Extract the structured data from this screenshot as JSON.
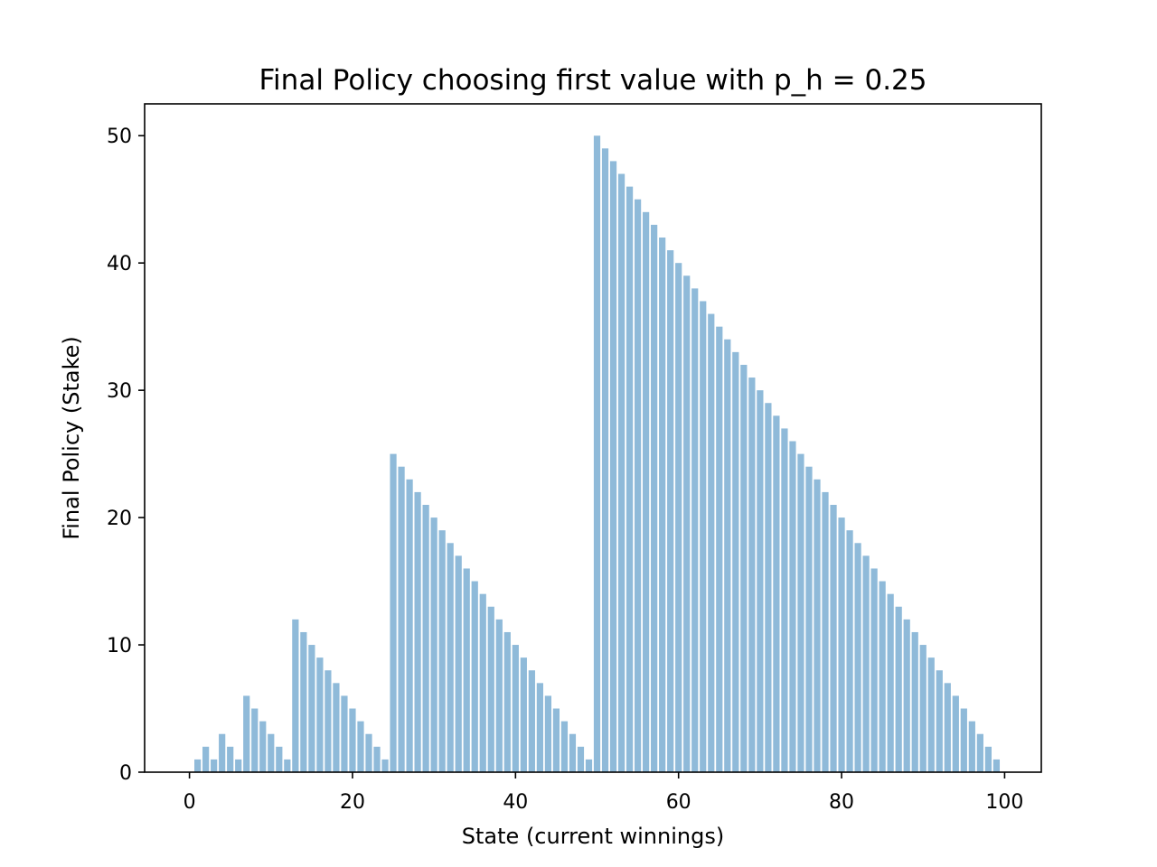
{
  "chart_data": {
    "type": "bar",
    "title": "Final Policy choosing first value with p_h = 0.25",
    "xlabel": "State (current winnings)",
    "ylabel": "Final Policy (Stake)",
    "xlim": [
      -5.5,
      104.5
    ],
    "ylim": [
      0,
      52.5
    ],
    "xticks": [
      0,
      20,
      40,
      60,
      80,
      100
    ],
    "yticks": [
      0,
      10,
      20,
      30,
      40,
      50
    ],
    "grid": false,
    "bar_color": "#8fbad9",
    "x": [
      0,
      1,
      2,
      3,
      4,
      5,
      6,
      7,
      8,
      9,
      10,
      11,
      12,
      13,
      14,
      15,
      16,
      17,
      18,
      19,
      20,
      21,
      22,
      23,
      24,
      25,
      26,
      27,
      28,
      29,
      30,
      31,
      32,
      33,
      34,
      35,
      36,
      37,
      38,
      39,
      40,
      41,
      42,
      43,
      44,
      45,
      46,
      47,
      48,
      49,
      50,
      51,
      52,
      53,
      54,
      55,
      56,
      57,
      58,
      59,
      60,
      61,
      62,
      63,
      64,
      65,
      66,
      67,
      68,
      69,
      70,
      71,
      72,
      73,
      74,
      75,
      76,
      77,
      78,
      79,
      80,
      81,
      82,
      83,
      84,
      85,
      86,
      87,
      88,
      89,
      90,
      91,
      92,
      93,
      94,
      95,
      96,
      97,
      98,
      99
    ],
    "values": [
      0,
      1,
      2,
      1,
      3,
      2,
      1,
      6,
      5,
      4,
      3,
      2,
      1,
      12,
      11,
      10,
      9,
      8,
      7,
      6,
      5,
      4,
      3,
      2,
      1,
      25,
      24,
      23,
      22,
      21,
      20,
      19,
      18,
      17,
      16,
      15,
      14,
      13,
      12,
      11,
      10,
      9,
      8,
      7,
      6,
      5,
      4,
      3,
      2,
      1,
      50,
      49,
      48,
      47,
      46,
      45,
      44,
      43,
      42,
      41,
      40,
      39,
      38,
      37,
      36,
      35,
      34,
      33,
      32,
      31,
      30,
      29,
      28,
      27,
      26,
      25,
      24,
      23,
      22,
      21,
      20,
      19,
      18,
      17,
      16,
      15,
      14,
      13,
      12,
      11,
      10,
      9,
      8,
      7,
      6,
      5,
      4,
      3,
      2,
      1
    ]
  }
}
